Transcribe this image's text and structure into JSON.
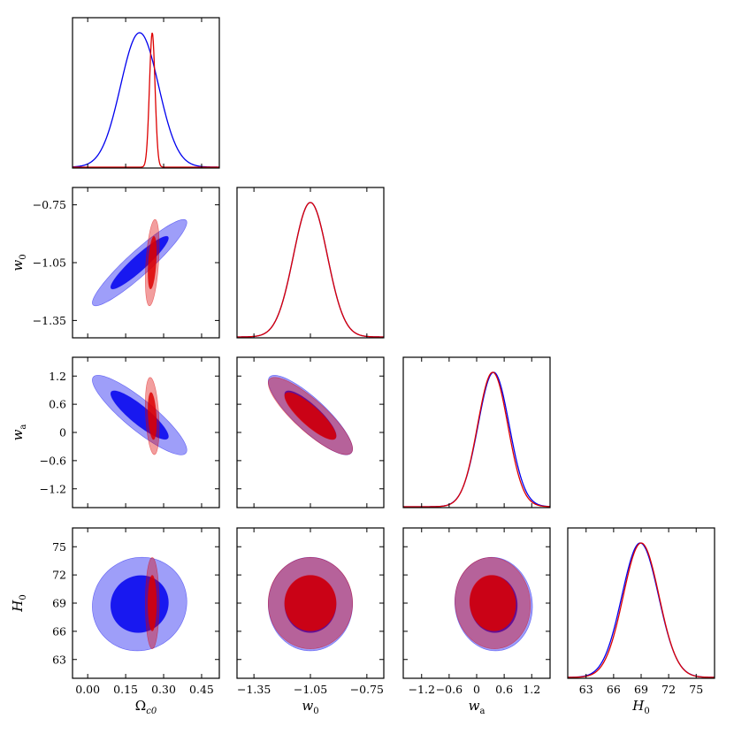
{
  "chart_data": {
    "type": "triangle-corner",
    "parameters": [
      {
        "id": "omega",
        "label": "Ωc0",
        "label_main": "Ω",
        "label_sub": "c0",
        "range": [
          -0.06,
          0.52
        ],
        "ticks": [
          0.0,
          0.15,
          0.3,
          0.45
        ],
        "tick_labels": [
          "0.00",
          "0.15",
          "0.30",
          "0.45"
        ]
      },
      {
        "id": "w0",
        "label": "w0",
        "label_main": "w",
        "label_sub": "0",
        "range": [
          -1.44,
          -0.66
        ],
        "ticks": [
          -1.35,
          -1.05,
          -0.75
        ],
        "tick_labels": [
          "−1.35",
          "−1.05",
          "−0.75"
        ]
      },
      {
        "id": "wa",
        "label": "wa",
        "label_main": "w",
        "label_sub": "a",
        "range": [
          -1.6,
          1.6
        ],
        "ticks": [
          -1.2,
          -0.6,
          0.0,
          0.6,
          1.2
        ],
        "tick_labels": [
          "−1.2",
          "−0.6",
          "0",
          "0.6",
          "1.2"
        ]
      },
      {
        "id": "h0",
        "label": "H0",
        "label_main": "H",
        "label_sub": "0",
        "range": [
          61.0,
          77.0
        ],
        "ticks": [
          63,
          66,
          69,
          72,
          75
        ],
        "tick_labels": [
          "63",
          "66",
          "69",
          "72",
          "75"
        ]
      }
    ],
    "series": [
      {
        "name": "blue",
        "color": "#0000ee",
        "means": [
          0.205,
          -1.05,
          0.37,
          68.9
        ],
        "sigmas": [
          0.075,
          0.09,
          0.34,
          2.0
        ],
        "correlations": {
          "w0|omega": 0.93,
          "wa|omega": -0.88,
          "wa|w0": -0.85,
          "h0|omega": 0.05,
          "h0|w0": 0.0,
          "h0|wa": -0.05
        }
      },
      {
        "name": "red",
        "color": "#dd0000",
        "means": [
          0.255,
          -1.05,
          0.35,
          69.0
        ],
        "sigmas": [
          0.011,
          0.09,
          0.33,
          1.95
        ],
        "correlations": {
          "w0|omega": 0.4,
          "wa|omega": -0.3,
          "wa|w0": -0.85,
          "h0|omega": 0.0,
          "h0|w0": 0.0,
          "h0|wa": -0.05
        }
      }
    ],
    "contour_levels": [
      "1-sigma",
      "2-sigma"
    ],
    "grid": false
  }
}
